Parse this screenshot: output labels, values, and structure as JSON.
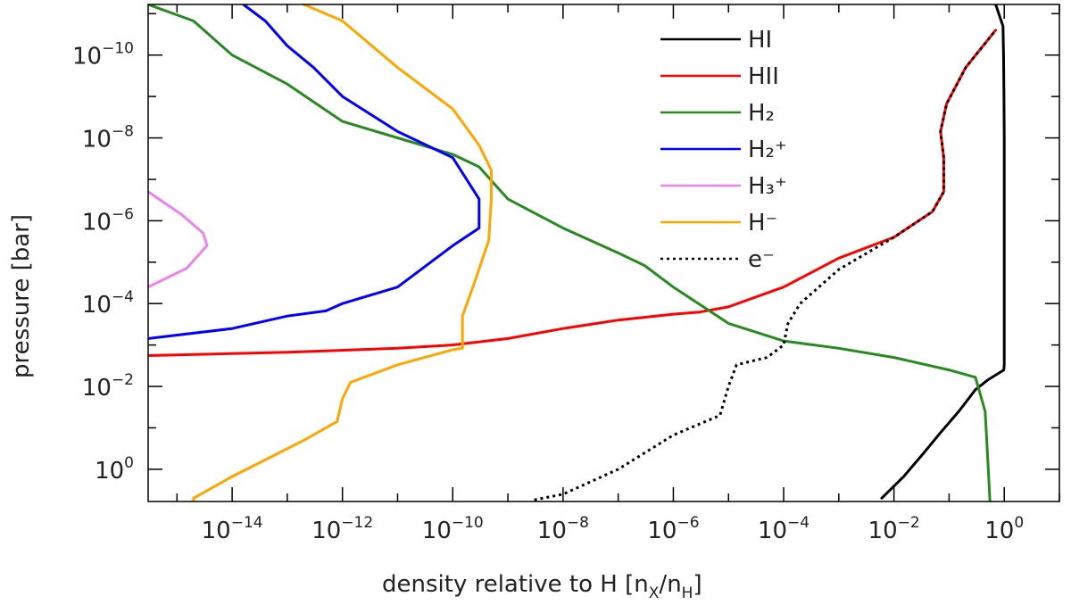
{
  "chart_data": {
    "type": "line",
    "title": "",
    "xlabel": "density relative to H",
    "xlabel_units": {
      "open": "[",
      "num": "n",
      "num_sub": "X",
      "slash": "/",
      "den": "n",
      "den_sub": "H",
      "close": "]"
    },
    "ylabel": "pressure [bar]",
    "xscale": "log",
    "yscale": "log",
    "y_inverted": true,
    "xlim": [
      3e-16,
      10
    ],
    "ylim": [
      6,
      6e-12
    ],
    "x_ticks": [
      {
        "base": "10",
        "exp": "−14",
        "value": 1e-14
      },
      {
        "base": "10",
        "exp": "−12",
        "value": 1e-12
      },
      {
        "base": "10",
        "exp": "−10",
        "value": 1e-10
      },
      {
        "base": "10",
        "exp": "−8",
        "value": 1e-08
      },
      {
        "base": "10",
        "exp": "−6",
        "value": 1e-06
      },
      {
        "base": "10",
        "exp": "−4",
        "value": 0.0001
      },
      {
        "base": "10",
        "exp": "−2",
        "value": 0.01
      },
      {
        "base": "10",
        "exp": "0",
        "value": 1
      }
    ],
    "y_ticks": [
      {
        "base": "10",
        "exp": "−10",
        "value": 1e-10
      },
      {
        "base": "10",
        "exp": "−8",
        "value": 1e-08
      },
      {
        "base": "10",
        "exp": "−6",
        "value": 1e-06
      },
      {
        "base": "10",
        "exp": "−4",
        "value": 0.0001
      },
      {
        "base": "10",
        "exp": "−2",
        "value": 0.01
      },
      {
        "base": "10",
        "exp": "0",
        "value": 1
      }
    ],
    "grid": false,
    "legend_position": "top-right",
    "series": [
      {
        "name": "HI",
        "color": "#000000",
        "dash": "solid",
        "x": [
          0.7,
          0.95,
          0.97,
          0.99,
          1.0,
          1.0,
          1.0,
          1.0,
          0.98,
          0.75,
          0.5,
          0.3,
          0.15,
          0.07,
          0.035,
          0.015,
          0.006
        ],
        "y": [
          6e-12,
          2e-11,
          1e-10,
          1e-09,
          1e-08,
          1e-06,
          0.0001,
          0.003,
          0.004,
          0.005,
          0.007,
          0.012,
          0.04,
          0.13,
          0.4,
          1.5,
          5
        ]
      },
      {
        "name": "HII",
        "color": "#ff0000",
        "dash": "solid",
        "x": [
          3e-16,
          1e-13,
          1e-11,
          1e-10,
          1e-09,
          1e-08,
          1e-07,
          1e-06,
          3e-06,
          1e-05,
          0.0001,
          0.001,
          0.01,
          0.05,
          0.08,
          0.08,
          0.07,
          0.09,
          0.2,
          0.7
        ],
        "y": [
          0.0018,
          0.0015,
          0.0012,
          0.001,
          0.0007,
          0.0004,
          0.00025,
          0.00018,
          0.00016,
          0.00012,
          4e-05,
          8e-06,
          2.5e-06,
          6e-07,
          2e-07,
          3e-08,
          7e-09,
          1.5e-09,
          2e-10,
          2.5e-11
        ]
      },
      {
        "name": "H₂",
        "color": "#2a8a22",
        "dash": "solid",
        "x": [
          3e-16,
          2e-15,
          1e-14,
          1e-13,
          1e-12,
          1e-11,
          1e-10,
          3e-10,
          1e-09,
          1e-08,
          1e-07,
          3e-07,
          1e-06,
          1e-05,
          0.0001,
          0.001,
          0.01,
          0.1,
          0.3,
          0.45,
          0.5,
          0.55
        ],
        "y": [
          6e-12,
          1.5e-11,
          1e-10,
          5e-10,
          4e-09,
          1e-08,
          2.5e-08,
          5e-08,
          3e-07,
          1.5e-06,
          6e-06,
          1.2e-05,
          4e-05,
          0.0003,
          0.0008,
          0.0012,
          0.002,
          0.004,
          0.006,
          0.04,
          0.5,
          6
        ]
      },
      {
        "name": "H₂⁺",
        "color": "#0000ff",
        "dash": "solid",
        "x": [
          1.6e-14,
          4e-14,
          1e-13,
          3e-13,
          1e-12,
          1e-11,
          1e-10,
          3e-10,
          3e-10,
          1e-10,
          1e-11,
          1e-12,
          5e-13,
          1e-13,
          1e-14,
          3e-16
        ],
        "y": [
          6e-12,
          1.5e-11,
          6e-11,
          2e-10,
          1e-09,
          7e-09,
          3e-08,
          3e-07,
          1.5e-06,
          4e-06,
          4e-05,
          0.0001,
          0.00015,
          0.0002,
          0.0004,
          0.0007
        ]
      },
      {
        "name": "H₃⁺",
        "color": "#ee82ee",
        "dash": "solid",
        "x": [
          3e-16,
          1.2e-15,
          3e-15,
          3.5e-15,
          1.5e-15,
          3e-16
        ],
        "y": [
          2e-07,
          7e-07,
          2e-06,
          4e-06,
          1.4e-05,
          4e-05
        ]
      },
      {
        "name": "H⁻",
        "color": "#ffa500",
        "dash": "solid",
        "x": [
          2e-13,
          1e-12,
          1e-11,
          1e-10,
          3e-10,
          5e-10,
          5e-10,
          4.5e-10,
          2.5e-10,
          1.5e-10,
          1.5e-10,
          1.5e-10,
          1e-10,
          1e-11,
          1.4e-12,
          1e-12,
          8e-13,
          5e-13,
          2e-13,
          1e-14,
          2e-15,
          2e-15
        ],
        "y": [
          6e-12,
          1.5e-11,
          2e-10,
          2e-09,
          1.5e-08,
          6e-08,
          3e-07,
          3e-06,
          3e-05,
          0.0002,
          0.0008,
          0.0012,
          0.0013,
          0.003,
          0.008,
          0.02,
          0.07,
          0.1,
          0.2,
          1.5,
          5,
          6
        ]
      },
      {
        "name": "e⁻",
        "color": "#000000",
        "dash": "dotted",
        "x": [
          3e-09,
          1e-08,
          1e-07,
          1e-06,
          7e-06,
          1e-05,
          1.4e-05,
          5e-05,
          0.0001,
          0.00012,
          0.0002,
          0.001,
          0.01,
          0.05,
          0.08,
          0.08,
          0.07,
          0.09,
          0.2,
          0.7
        ],
        "y": [
          5.5,
          4,
          1,
          0.15,
          0.05,
          0.01,
          0.003,
          0.002,
          0.001,
          0.0003,
          0.0001,
          1.5e-05,
          2.5e-06,
          6e-07,
          2e-07,
          3e-08,
          7e-09,
          1.5e-09,
          2e-10,
          2.5e-11
        ]
      }
    ]
  }
}
